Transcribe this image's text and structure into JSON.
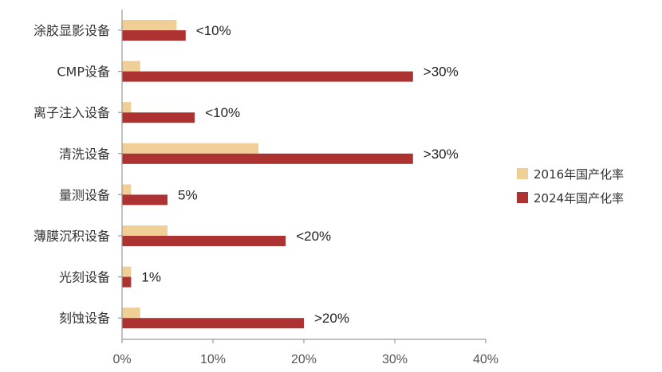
{
  "chart_data": {
    "type": "bar",
    "orientation": "horizontal",
    "title": "",
    "xlabel": "",
    "ylabel": "",
    "categories": [
      "涂胶显影设备",
      "CMP设备",
      "离子注入设备",
      "清洗设备",
      "量测设备",
      "薄膜沉积设备",
      "光刻设备",
      "刻蚀设备"
    ],
    "series": [
      {
        "name": "2016年国产化率",
        "color": "#f0cf97",
        "values": [
          6,
          2,
          1,
          15,
          1,
          5,
          1,
          2
        ]
      },
      {
        "name": "2024年国产化率",
        "color": "#ad3333",
        "values": [
          7,
          32,
          8,
          32,
          5,
          18,
          1,
          20
        ]
      }
    ],
    "data_labels": [
      "<10%",
      ">30%",
      "<10%",
      ">30%",
      "5%",
      "<20%",
      "1%",
      ">20%"
    ],
    "xlim": [
      0,
      40
    ],
    "xticks": [
      0,
      10,
      20,
      30,
      40
    ],
    "xtick_labels": [
      "0%",
      "10%",
      "20%",
      "30%",
      "40%"
    ],
    "grid": false,
    "legend_position": "right"
  }
}
